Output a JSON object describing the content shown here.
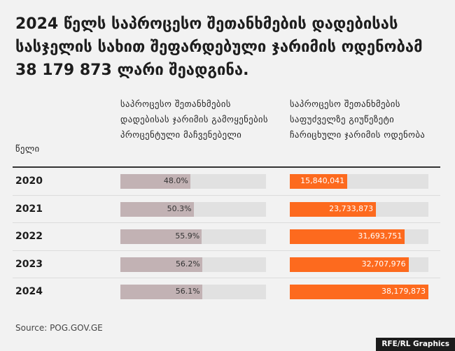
{
  "title": "2024 წელს საპროცესო შეთანხმების დადებისას სასჯელის სახით შეფარდებული ჯარიმის ოდენობამ 38 179 873 ლარი შეადგინა.",
  "headers": {
    "year": "წელი",
    "pct": "საპროცესო შეთანხმების დადებისას ჯარიმის გამოყენების პროცენტული მაჩვენებელი",
    "amount": "საპროცესო შეთანხმების საფუძველზე გიუწეზეტი ჩარიცხული ჯარიმის ოდენობა"
  },
  "source": "Source: POG.GOV.GE",
  "credit": "RFE/RL Graphics",
  "colors": {
    "pct_bar": "#c2b2b4",
    "amount_bar": "#fd6a1e",
    "track": "#e1e1e1"
  },
  "chart_data": {
    "type": "bar",
    "categories": [
      "2020",
      "2021",
      "2022",
      "2023",
      "2024"
    ],
    "series": [
      {
        "values": [
          48.0,
          50.3,
          55.9,
          56.2,
          56.1
        ],
        "labels": [
          "48.0%",
          "50.3%",
          "55.9%",
          "56.2%",
          "56.1%"
        ],
        "max": 100
      },
      {
        "values": [
          15840041,
          23733873,
          31693751,
          32707976,
          38179873
        ],
        "labels": [
          "15,840,041",
          "23,733,873",
          "31,693,751",
          "32,707,976",
          "38,179,873"
        ],
        "max": 38179873
      }
    ]
  }
}
